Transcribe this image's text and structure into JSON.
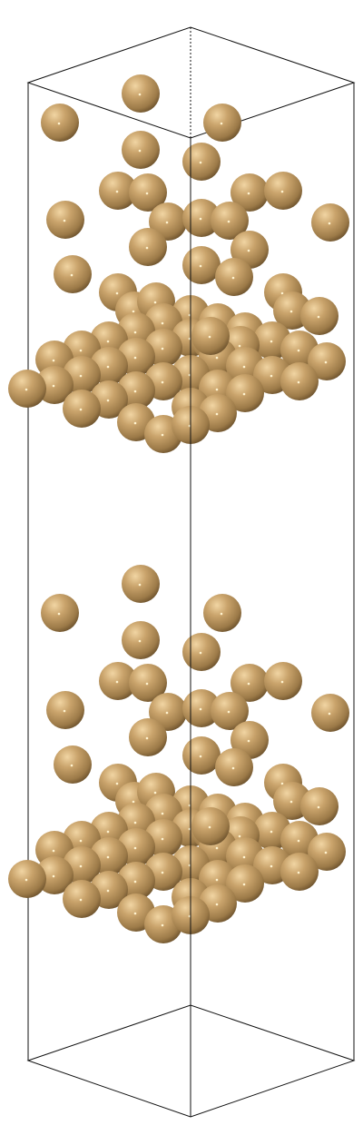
{
  "scene": {
    "kind": "molecular-visualization",
    "subject": "metal-atom-slab-with-adsorbates-in-periodic-cell",
    "background_color": "#ffffff",
    "cell_edge_color": "#111111",
    "atom_colors": {
      "base": "#c9a36b",
      "highlight": "#f1d5a3",
      "shadow": "#5c4423",
      "specular": "#fff3cf"
    },
    "atom_count_per_image": 92
  }
}
